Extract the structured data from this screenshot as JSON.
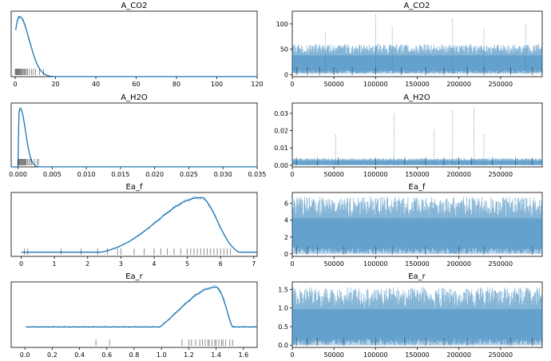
{
  "chart_data": [
    {
      "type": "line",
      "kind": "kde",
      "title": "A_CO2",
      "xlim": [
        -2,
        120
      ],
      "ylim": [
        0,
        1
      ],
      "xticks": [
        0,
        20,
        40,
        60,
        80,
        100,
        120
      ],
      "yticks": [],
      "mode": 2,
      "left_scale": 2.5,
      "right_scale": 5,
      "min_density": 0.001,
      "rug": [
        0,
        0.3,
        0.6,
        0.9,
        1.2,
        1.5,
        1.8,
        2.1,
        2.5,
        2.8,
        3.2,
        3.6,
        4,
        4.5,
        5,
        5.5,
        6,
        7,
        8,
        9,
        10,
        12,
        14
      ]
    },
    {
      "type": "line",
      "kind": "trace",
      "title": "A_CO2",
      "xlim": [
        0,
        300000
      ],
      "ylim": [
        -4,
        125
      ],
      "xticks": [
        0,
        50000,
        100000,
        150000,
        200000,
        250000
      ],
      "yticks": [
        0,
        50,
        100
      ],
      "band": [
        2,
        60
      ],
      "spikes": [
        [
          100000,
          120
        ],
        [
          192000,
          112
        ],
        [
          120000,
          95
        ],
        [
          280000,
          100
        ],
        [
          40000,
          85
        ],
        [
          230000,
          90
        ]
      ],
      "divergences": [
        5000,
        18000,
        33000,
        50000,
        72000,
        100000,
        131000,
        160000,
        182000,
        210000,
        230000,
        262000,
        288000
      ]
    },
    {
      "type": "line",
      "kind": "kde",
      "title": "A_H2O",
      "xlim": [
        -0.001,
        0.035
      ],
      "ylim": [
        0,
        1
      ],
      "xticks": [
        0.0,
        0.005,
        0.01,
        0.015,
        0.02,
        0.025,
        0.03,
        0.035
      ],
      "yticks": [],
      "mode": 0.0003,
      "left_scale": 0.0004,
      "right_scale": 0.0008,
      "min_density": 0.001,
      "rug": [
        0,
        0.0001,
        0.0002,
        0.0003,
        0.0004,
        0.0005,
        0.0006,
        0.0007,
        0.0008,
        0.0009,
        0.001,
        0.0011,
        0.0012,
        0.0014,
        0.0016,
        0.0018,
        0.002,
        0.0024,
        0.0028,
        0.003
      ]
    },
    {
      "type": "line",
      "kind": "trace",
      "title": "A_H2O",
      "xlim": [
        0,
        300000
      ],
      "ylim": [
        -0.001,
        0.036
      ],
      "xticks": [
        0,
        50000,
        100000,
        150000,
        200000,
        250000
      ],
      "yticks": [
        0.0,
        0.01,
        0.02,
        0.03
      ],
      "yformat": 2,
      "band": [
        0,
        0.004
      ],
      "spikes": [
        [
          122000,
          0.03
        ],
        [
          218000,
          0.034
        ],
        [
          192000,
          0.032
        ],
        [
          52000,
          0.018
        ],
        [
          170000,
          0.021
        ],
        [
          230000,
          0.018
        ]
      ],
      "divergences": [
        5000,
        30000,
        55000,
        100000,
        135000,
        160000,
        182000,
        200000,
        215000,
        240000,
        268000,
        288000
      ]
    },
    {
      "type": "line",
      "kind": "kde",
      "title": "Ea_f",
      "xlim": [
        -0.3,
        7.1
      ],
      "ylim": [
        0,
        1
      ],
      "xticks": [
        0,
        1,
        2,
        3,
        4,
        5,
        6,
        7
      ],
      "yticks": [],
      "mode": 5.4,
      "left_scale": 1.3,
      "right_scale": 0.5,
      "min_density": 0.07,
      "rug": [
        0.1,
        0.2,
        1.2,
        1.8,
        2.3,
        2.6,
        2.9,
        3.0,
        3.4,
        3.7,
        4.0,
        4.2,
        4.4,
        4.6,
        4.8,
        5.0,
        5.1,
        5.2,
        5.3,
        5.4,
        5.5,
        5.6,
        5.7,
        5.8,
        5.9,
        6.0,
        6.1,
        6.2,
        6.3
      ]
    },
    {
      "type": "line",
      "kind": "trace",
      "title": "Ea_f",
      "xlim": [
        0,
        300000
      ],
      "ylim": [
        -0.3,
        7.3
      ],
      "xticks": [
        0,
        50000,
        100000,
        150000,
        200000,
        250000
      ],
      "yticks": [
        0,
        2,
        4,
        6
      ],
      "band": [
        0,
        6.8
      ],
      "spikes": [],
      "divergences": [
        5000,
        18000,
        30000,
        62000,
        100000,
        120000,
        160000,
        200000,
        230000,
        288000
      ]
    },
    {
      "type": "line",
      "kind": "kde",
      "title": "Ea_r",
      "xlim": [
        -0.1,
        1.7
      ],
      "ylim": [
        0,
        1
      ],
      "xticks": [
        0.0,
        0.2,
        0.4,
        0.6,
        0.8,
        1.0,
        1.2,
        1.4,
        1.6
      ],
      "yticks": [],
      "xformat": 1,
      "mode": 1.4,
      "left_scale": 0.28,
      "right_scale": 0.08,
      "min_density": 0.34,
      "rug": [
        0.52,
        0.62,
        1.15,
        1.2,
        1.22,
        1.25,
        1.28,
        1.3,
        1.32,
        1.34,
        1.35,
        1.37,
        1.39,
        1.4,
        1.42,
        1.44,
        1.45,
        1.47,
        1.5,
        1.52
      ]
    },
    {
      "type": "line",
      "kind": "trace",
      "title": "Ea_r",
      "xlim": [
        0,
        300000
      ],
      "ylim": [
        -0.06,
        1.7
      ],
      "xticks": [
        0,
        50000,
        100000,
        150000,
        200000,
        250000
      ],
      "yticks": [
        0.0,
        0.5,
        1.0,
        1.5
      ],
      "yformat": 1,
      "band": [
        0,
        1.56
      ],
      "spikes": [],
      "divergences": [
        5000,
        18000,
        30000,
        62000,
        100000,
        135000,
        160000,
        182000,
        210000,
        262000,
        288000
      ]
    }
  ]
}
